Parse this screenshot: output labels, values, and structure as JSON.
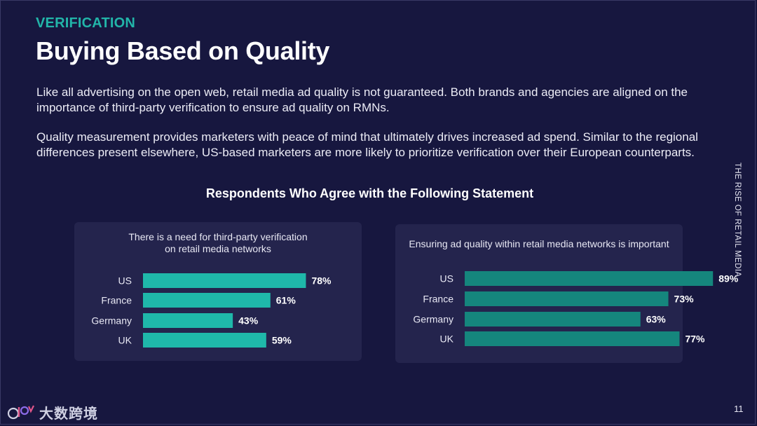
{
  "colors": {
    "background": "#17173f",
    "accent": "#22b5a9",
    "panel": "#24244d",
    "bar_chart1": "#1fb8aa",
    "bar_chart2": "#15867d"
  },
  "header": {
    "eyebrow": "VERIFICATION",
    "title": "Buying Based on Quality"
  },
  "body": {
    "paragraph1": "Like all advertising on the open web, retail media ad quality is not guaranteed. Both brands and agencies are aligned on the importance of third-party verification to ensure ad quality on RMNs.",
    "paragraph2": "Quality measurement provides marketers with peace of mind that ultimately drives increased ad spend. Similar to the regional differences present elsewhere, US-based marketers are more likely to prioritize verification over their European counterparts."
  },
  "chart_heading": "Respondents Who Agree with the Following Statement",
  "side_label": "THE RISE OF RETAIL MEDIA",
  "chart_data": [
    {
      "type": "bar",
      "orientation": "horizontal",
      "title": "There is a need for third-party verification on retail media networks",
      "title_lines": [
        "There is a need for third-party verification",
        "on retail media networks"
      ],
      "categories": [
        "US",
        "France",
        "Germany",
        "UK"
      ],
      "values": [
        78,
        61,
        43,
        59
      ],
      "value_suffix": "%",
      "xlim": [
        0,
        100
      ],
      "color": "#1fb8aa"
    },
    {
      "type": "bar",
      "orientation": "horizontal",
      "title": "Ensuring ad quality within retail media networks is important",
      "title_lines": [
        "Ensuring ad quality within retail media networks is important"
      ],
      "categories": [
        "US",
        "France",
        "Germany",
        "UK"
      ],
      "values": [
        89,
        73,
        63,
        77
      ],
      "value_suffix": "%",
      "xlim": [
        0,
        100
      ],
      "color": "#15867d"
    }
  ],
  "footer": {
    "logo_text": "大数跨境",
    "page_number": "11"
  }
}
